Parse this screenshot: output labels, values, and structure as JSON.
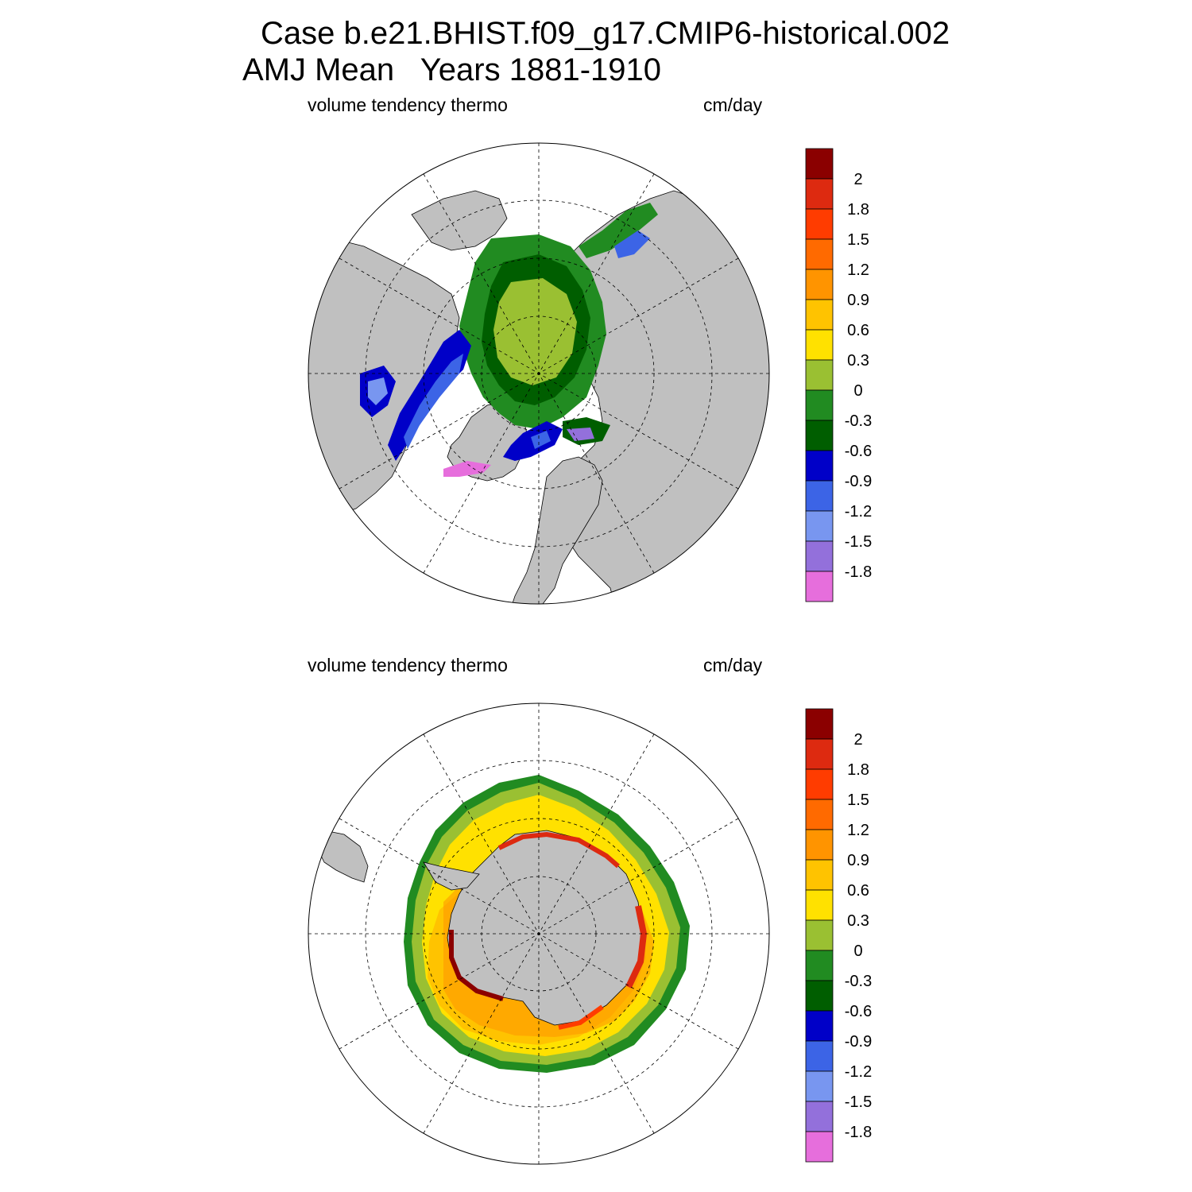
{
  "title_line1": "Case b.e21.BHIST.f09_g17.CMIP6-historical.002",
  "title_line2": "AMJ Mean   Years 1881-1910",
  "panels": [
    {
      "hemisphere": "north",
      "variable_label": "volume tendency thermo",
      "units_label": "cm/day"
    },
    {
      "hemisphere": "south",
      "variable_label": "volume tendency thermo",
      "units_label": "cm/day"
    }
  ],
  "colorbar": {
    "colors": [
      "#8B0000",
      "#DD2A10",
      "#FF3C00",
      "#FF6A00",
      "#FF9400",
      "#FFC300",
      "#FFE100",
      "#9AC032",
      "#218B21",
      "#005E00",
      "#0000C8",
      "#3C64E6",
      "#7896F0",
      "#9370DB",
      "#E66EDC"
    ],
    "labels": [
      "2",
      "1.8",
      "1.5",
      "1.2",
      "0.9",
      "0.6",
      "0.3",
      "0",
      "-0.3",
      "-0.6",
      "-0.9",
      "-1.2",
      "-1.5",
      "-1.8"
    ]
  },
  "map_colors": {
    "land": "#C0C0C0",
    "background": "#FFFFFF"
  }
}
